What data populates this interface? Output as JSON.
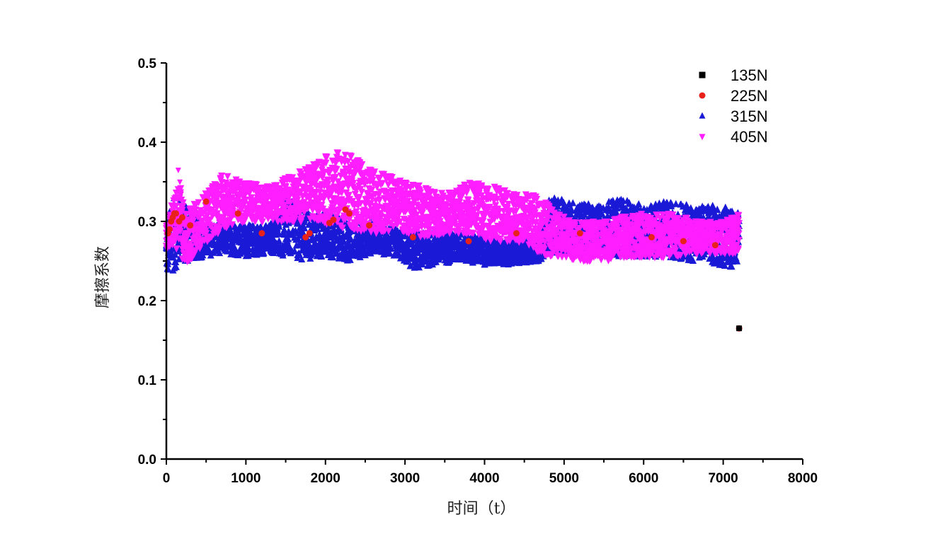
{
  "chart_data": {
    "type": "scatter",
    "title": "",
    "xlabel": "时间（t）",
    "ylabel": "摩擦系数",
    "xlim": [
      0,
      8000
    ],
    "ylim": [
      0,
      0.5
    ],
    "x_ticks": [
      0,
      1000,
      2000,
      3000,
      4000,
      5000,
      6000,
      7000,
      8000
    ],
    "y_ticks": [
      0.0,
      0.1,
      0.2,
      0.3,
      0.4,
      0.5
    ],
    "grid": false,
    "legend_position": "top-right",
    "series": [
      {
        "name": "135N",
        "color": "#000000",
        "marker": "square",
        "points": [
          [
            7200,
            0.165
          ]
        ]
      },
      {
        "name": "225N",
        "color": "#e8211b",
        "marker": "circle",
        "points": [
          [
            20,
            0.285
          ],
          [
            40,
            0.29
          ],
          [
            60,
            0.3
          ],
          [
            80,
            0.305
          ],
          [
            100,
            0.31
          ],
          [
            120,
            0.31
          ],
          [
            160,
            0.3
          ],
          [
            200,
            0.305
          ],
          [
            300,
            0.295
          ],
          [
            500,
            0.325
          ],
          [
            900,
            0.31
          ],
          [
            1200,
            0.285
          ],
          [
            1750,
            0.28
          ],
          [
            1800,
            0.285
          ],
          [
            2050,
            0.298
          ],
          [
            2100,
            0.302
          ],
          [
            2250,
            0.315
          ],
          [
            2300,
            0.31
          ],
          [
            2550,
            0.295
          ],
          [
            3100,
            0.28
          ],
          [
            3800,
            0.275
          ],
          [
            4400,
            0.285
          ],
          [
            5200,
            0.285
          ],
          [
            6100,
            0.28
          ],
          [
            6500,
            0.275
          ],
          [
            6900,
            0.27
          ],
          [
            7200,
            0.165
          ]
        ]
      },
      {
        "name": "315N",
        "color": "#1a1ad6",
        "marker": "triangle-up",
        "bands": [
          [
            0,
            0.24,
            0.28
          ],
          [
            30,
            0.225,
            0.31
          ],
          [
            60,
            0.23,
            0.32
          ],
          [
            100,
            0.24,
            0.33
          ],
          [
            200,
            0.245,
            0.325
          ],
          [
            300,
            0.25,
            0.315
          ],
          [
            500,
            0.255,
            0.295
          ],
          [
            700,
            0.26,
            0.3
          ],
          [
            1000,
            0.255,
            0.295
          ],
          [
            1300,
            0.26,
            0.295
          ],
          [
            1500,
            0.255,
            0.33
          ],
          [
            1800,
            0.25,
            0.31
          ],
          [
            2000,
            0.255,
            0.31
          ],
          [
            2300,
            0.25,
            0.3
          ],
          [
            2600,
            0.26,
            0.3
          ],
          [
            2900,
            0.255,
            0.29
          ],
          [
            3100,
            0.24,
            0.285
          ],
          [
            3400,
            0.245,
            0.285
          ],
          [
            3700,
            0.25,
            0.285
          ],
          [
            4000,
            0.245,
            0.28
          ],
          [
            4300,
            0.245,
            0.275
          ],
          [
            4700,
            0.25,
            0.275
          ],
          [
            4800,
            0.26,
            0.33
          ],
          [
            5100,
            0.26,
            0.325
          ],
          [
            5400,
            0.26,
            0.32
          ],
          [
            5700,
            0.255,
            0.33
          ],
          [
            6000,
            0.255,
            0.32
          ],
          [
            6300,
            0.255,
            0.325
          ],
          [
            6600,
            0.25,
            0.32
          ],
          [
            6900,
            0.245,
            0.32
          ],
          [
            7200,
            0.24,
            0.315
          ]
        ]
      },
      {
        "name": "405N",
        "color": "#ff1eff",
        "marker": "triangle-down",
        "bands": [
          [
            0,
            0.265,
            0.3
          ],
          [
            100,
            0.27,
            0.33
          ],
          [
            150,
            0.26,
            0.36
          ],
          [
            250,
            0.24,
            0.31
          ],
          [
            400,
            0.265,
            0.33
          ],
          [
            700,
            0.29,
            0.36
          ],
          [
            1000,
            0.3,
            0.35
          ],
          [
            1300,
            0.3,
            0.345
          ],
          [
            1600,
            0.3,
            0.36
          ],
          [
            1900,
            0.3,
            0.375
          ],
          [
            2100,
            0.295,
            0.39
          ],
          [
            2300,
            0.29,
            0.385
          ],
          [
            2600,
            0.285,
            0.365
          ],
          [
            2900,
            0.29,
            0.355
          ],
          [
            3200,
            0.28,
            0.345
          ],
          [
            3500,
            0.285,
            0.335
          ],
          [
            3800,
            0.285,
            0.35
          ],
          [
            4100,
            0.275,
            0.345
          ],
          [
            4400,
            0.275,
            0.335
          ],
          [
            4700,
            0.26,
            0.335
          ],
          [
            4900,
            0.255,
            0.31
          ],
          [
            5200,
            0.25,
            0.3
          ],
          [
            5500,
            0.25,
            0.3
          ],
          [
            5800,
            0.255,
            0.31
          ],
          [
            6100,
            0.255,
            0.31
          ],
          [
            6400,
            0.255,
            0.31
          ],
          [
            6700,
            0.26,
            0.3
          ],
          [
            7000,
            0.26,
            0.3
          ],
          [
            7200,
            0.26,
            0.31
          ]
        ],
        "points": [
          [
            150,
            0.365
          ],
          [
            170,
            0.35
          ],
          [
            220,
            0.325
          ]
        ]
      }
    ]
  }
}
